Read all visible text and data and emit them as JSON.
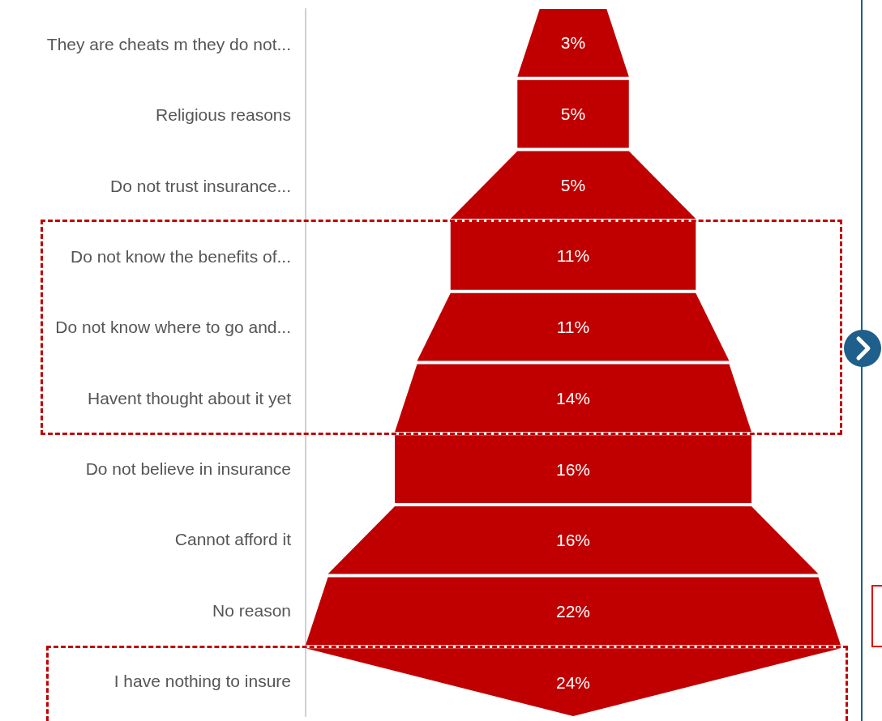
{
  "chart_data": {
    "type": "other",
    "categories": [
      "They are cheats m they do not...",
      "Religious reasons",
      "Do not trust insurance...",
      "Do not know the benefits of...",
      "Do not know where to go and...",
      "Havent thought about it yet",
      "Do not believe in insurance",
      "Cannot afford it",
      "No reason",
      "I have nothing to insure"
    ],
    "values": [
      3,
      5,
      5,
      11,
      11,
      14,
      16,
      16,
      22,
      24
    ],
    "value_labels": [
      "3%",
      "5%",
      "5%",
      "11%",
      "11%",
      "14%",
      "16%",
      "16%",
      "22%",
      "24%"
    ],
    "color": "#c00000"
  }
}
